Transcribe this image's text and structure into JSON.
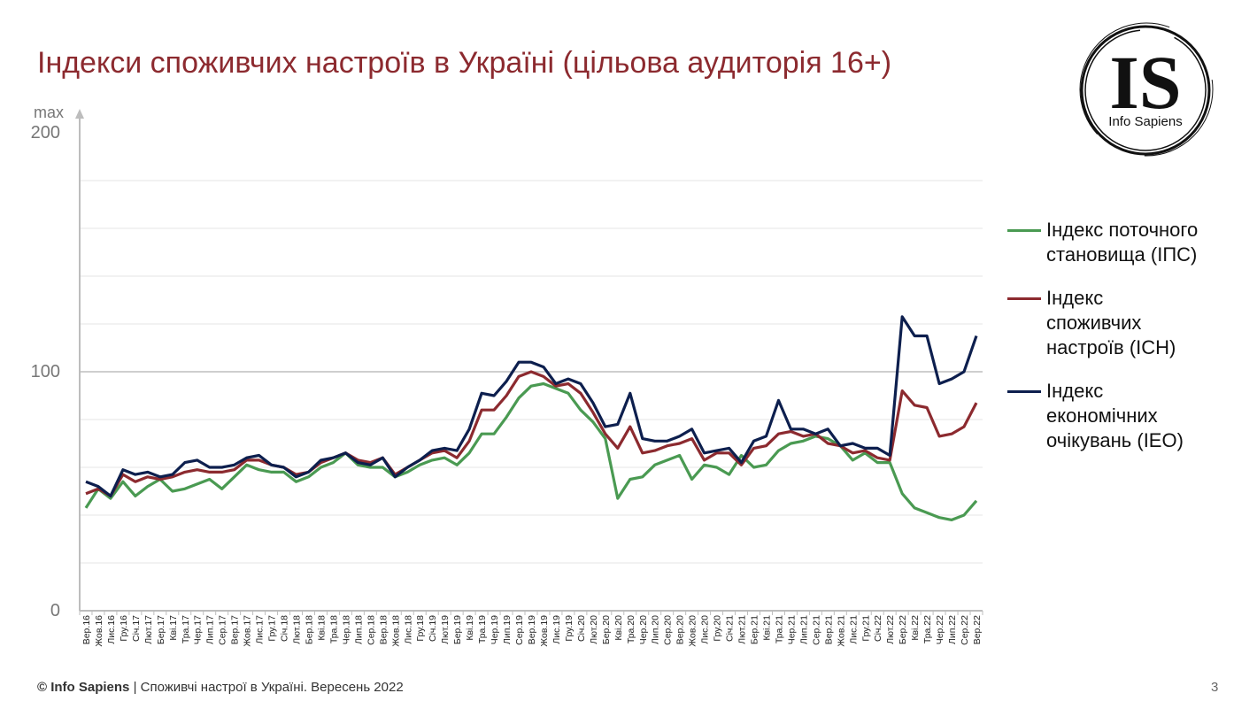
{
  "page": {
    "title": "Індекси споживчих настроїв в Україні (цільова аудиторія 16+)",
    "logo_text": "IS",
    "logo_caption": "Info Sapiens",
    "footer_brand": "© Info Sapiens",
    "footer_text": " | Споживчі настрої в Україні. Вересень 2022",
    "page_number": "3"
  },
  "chart_data": {
    "type": "line",
    "ymax_label": "max",
    "y_ticks": [
      "200",
      "100",
      "0"
    ],
    "ylim": [
      0,
      200
    ],
    "x": [
      "Вер.16",
      "Жов.16",
      "Лис.16",
      "Гру.16",
      "Січ.17",
      "Лют.17",
      "Бер.17",
      "Кві.17",
      "Тра.17",
      "Чер.17",
      "Лип.17",
      "Сер.17",
      "Вер.17",
      "Жов.17",
      "Лис.17",
      "Гру.17",
      "Січ.18",
      "Лют.18",
      "Бер.18",
      "Кві.18",
      "Тра.18",
      "Чер.18",
      "Лип.18",
      "Сер.18",
      "Вер.18",
      "Жов.18",
      "Лис.18",
      "Гру.18",
      "Січ.19",
      "Лют.19",
      "Бер.19",
      "Кві.19",
      "Тра.19",
      "Чер.19",
      "Лип.19",
      "Сер.19",
      "Вер.19",
      "Жов.19",
      "Лис.19",
      "Гру.19",
      "Січ.20",
      "Лют.20",
      "Бер.20",
      "Кві.20",
      "Тра.20",
      "Чер.20",
      "Лип.20",
      "Сер.20",
      "Вер.20",
      "Жов.20",
      "Лис.20",
      "Гру.20",
      "Січ.21",
      "Лют.21",
      "Бер.21",
      "Кві.21",
      "Тра.21",
      "Чер.21",
      "Лип.21",
      "Сер.21",
      "Вер.21",
      "Жов.21",
      "Лис.21",
      "Гру.21",
      "Січ.22",
      "Лют.22",
      "Бер.22",
      "Кві.22",
      "Тра.22",
      "Чер.22",
      "Лип.22",
      "Сер.22",
      "Вер.22"
    ],
    "x_labels": [
      "Вер.16",
      "Жов.16",
      "Лис.16",
      "Гру.16",
      "Січ.17",
      "Лют.17",
      "Бер.17",
      "Кві.17",
      "Тра.17",
      "Чер.17",
      "Лип.17",
      "Сер.17",
      "Вер.17",
      "Жов.17",
      "Лис.17",
      "Гру.17",
      "Січ.18",
      "Лют.18",
      "Бер.18",
      "Кві.18",
      "Тра.18",
      "Чер.18",
      "Лип.18",
      "Сер.18",
      "Вер.18",
      "Жов.18",
      "Лис.18",
      "Гру.18",
      "Січ.19",
      "Лют.19",
      "Бер.19",
      "Кві.19",
      "Тра.19",
      "Чер.19",
      "Лип.19",
      "Сер.19",
      "Вер.19",
      "Жов.19",
      "Лис.19",
      "Гру.19",
      "Січ.20",
      "Лют.20",
      "Бер.20",
      "Кві.20",
      "Тра.20",
      "Чер.20",
      "Лип.20",
      "Сер.20",
      "Вер.20",
      "Жов.20",
      "Лис.20",
      "Гру.20",
      "Січ.21",
      "Лют.21",
      "Бер.21",
      "Кві.21",
      "Тра.21",
      "Чер.21",
      "Лип.21",
      "Сер.21",
      "Вер.21",
      "Жов.21",
      "Лис.21",
      "Гру.21",
      "Січ.22",
      "Лют.22",
      "Бер.22",
      "Кві.22",
      "Тра.22",
      "Чер.22",
      "Лип.22",
      "Сер.22",
      "Вер.22"
    ],
    "series": [
      {
        "name": "Індекс поточного становища (ІПС)",
        "legend_lines": [
          "Індекс поточного",
          "становища (ІПС)"
        ],
        "color": "#4a9a52",
        "values": [
          43,
          51,
          47,
          54,
          48,
          52,
          55,
          50,
          51,
          53,
          55,
          51,
          56,
          61,
          59,
          58,
          58,
          54,
          56,
          60,
          62,
          66,
          61,
          60,
          60,
          56,
          58,
          61,
          63,
          64,
          61,
          66,
          74,
          74,
          81,
          89,
          94,
          95,
          93,
          91,
          84,
          79,
          72,
          47,
          55,
          56,
          61,
          63,
          65,
          55,
          61,
          60,
          57,
          65,
          60,
          61,
          67,
          70,
          71,
          73,
          72,
          69,
          63,
          66,
          62,
          62,
          49,
          43,
          41,
          39,
          38,
          40,
          46
        ]
      },
      {
        "name": "Індекс споживчих настроїв (ІСН)",
        "legend_lines": [
          "Індекс",
          "споживчих",
          "настроїв (ІСН)"
        ],
        "color": "#8c2a2f",
        "values": [
          49,
          51,
          48,
          57,
          54,
          56,
          55,
          56,
          58,
          59,
          58,
          58,
          59,
          63,
          63,
          61,
          60,
          57,
          58,
          62,
          64,
          66,
          63,
          62,
          64,
          57,
          60,
          63,
          66,
          67,
          64,
          71,
          84,
          84,
          90,
          98,
          100,
          98,
          94,
          95,
          91,
          83,
          74,
          68,
          77,
          66,
          67,
          69,
          70,
          72,
          63,
          66,
          66,
          61,
          68,
          69,
          74,
          75,
          73,
          74,
          70,
          69,
          66,
          67,
          64,
          63,
          92,
          86,
          85,
          73,
          74,
          77,
          87
        ]
      },
      {
        "name": "Індекс економічних очікувань (ІЕО)",
        "legend_lines": [
          "Індекс",
          "економічних",
          "очікувань (ІЕО)"
        ],
        "color": "#0d1f4e",
        "values": [
          54,
          52,
          48,
          59,
          57,
          58,
          56,
          57,
          62,
          63,
          60,
          60,
          61,
          64,
          65,
          61,
          60,
          56,
          58,
          63,
          64,
          66,
          62,
          61,
          64,
          56,
          60,
          63,
          67,
          68,
          67,
          76,
          91,
          90,
          96,
          104,
          104,
          102,
          95,
          97,
          95,
          87,
          77,
          78,
          91,
          72,
          71,
          71,
          73,
          76,
          66,
          67,
          68,
          62,
          71,
          73,
          88,
          76,
          76,
          74,
          76,
          69,
          70,
          68,
          68,
          65,
          123,
          115,
          115,
          95,
          97,
          100,
          115
        ]
      }
    ],
    "xlabel": "",
    "ylabel": "",
    "grid": true,
    "legend": "right"
  }
}
